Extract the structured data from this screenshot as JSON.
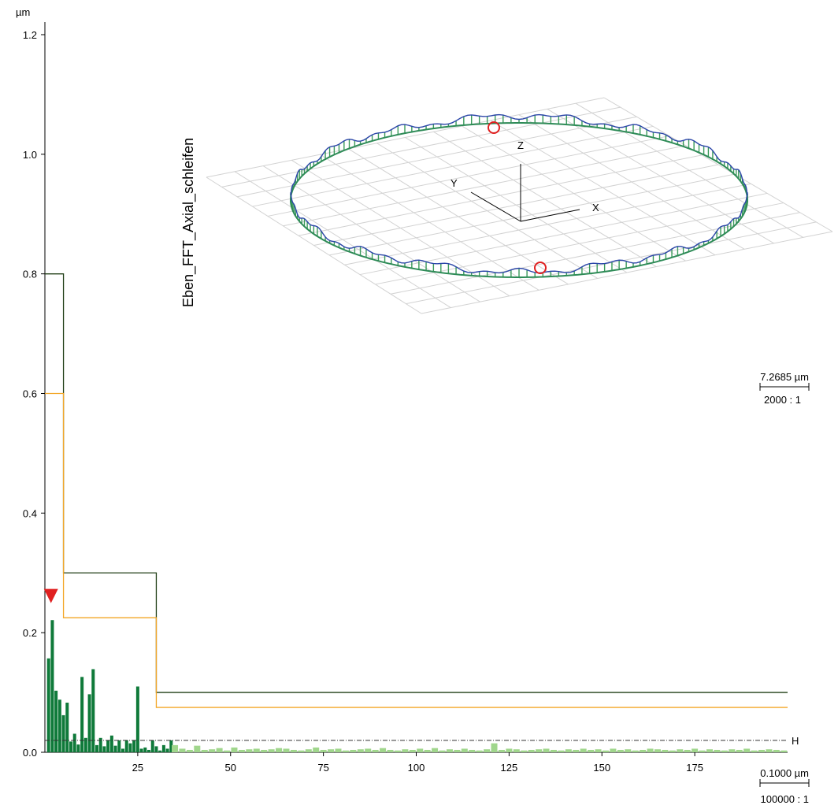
{
  "chart_data": {
    "type": "bar",
    "title": "Eben_FFT_Axial_schleifen",
    "ylabel": "µm",
    "ylim": [
      0,
      1.25
    ],
    "xlim": [
      0,
      200
    ],
    "yticks": [
      0.0,
      0.2,
      0.4,
      0.6,
      0.8,
      1.0,
      1.2
    ],
    "ytick_labels": [
      "0.0",
      "0.2",
      "0.4",
      "0.6",
      "0.8",
      "1.0",
      "1.2"
    ],
    "xticks": [
      25,
      50,
      75,
      100,
      125,
      150,
      175
    ],
    "xtick_labels": [
      "25",
      "50",
      "75",
      "100",
      "125",
      "150",
      "175"
    ],
    "grid": false,
    "limit_lines": [
      {
        "name": "limit-upper",
        "color": "#1e3d14",
        "steps": [
          [
            0,
            5,
            0.8
          ],
          [
            5,
            30,
            0.3
          ],
          [
            30,
            200,
            0.1
          ]
        ]
      },
      {
        "name": "limit-lower",
        "color": "#f3a524",
        "steps": [
          [
            0,
            5,
            0.6
          ],
          [
            5,
            30,
            0.225
          ],
          [
            30,
            200,
            0.075
          ]
        ]
      }
    ],
    "threshold": {
      "value": 0.02,
      "label": "H"
    },
    "marker": {
      "x": 1,
      "y": 0.26
    },
    "series": [
      {
        "color": "#0f7a3a",
        "x": [
          1,
          2,
          3,
          4,
          5,
          6,
          7,
          8,
          9,
          10,
          11,
          12,
          13,
          14,
          15,
          16,
          17,
          18,
          19,
          20,
          21,
          22,
          23,
          24,
          25,
          26,
          27,
          28,
          29,
          30,
          31,
          32,
          33,
          34
        ],
        "values": [
          0.157,
          0.221,
          0.103,
          0.088,
          0.062,
          0.083,
          0.018,
          0.031,
          0.013,
          0.126,
          0.024,
          0.097,
          0.139,
          0.012,
          0.024,
          0.01,
          0.02,
          0.028,
          0.011,
          0.02,
          0.006,
          0.02,
          0.015,
          0.02,
          0.11,
          0.006,
          0.008,
          0.004,
          0.02,
          0.01,
          0.003,
          0.012,
          0.006,
          0.02
        ]
      },
      {
        "color": "#a0d68c",
        "x": [
          35,
          37,
          39,
          41,
          43,
          45,
          47,
          49,
          51,
          53,
          55,
          57,
          59,
          61,
          63,
          65,
          67,
          69,
          71,
          73,
          75,
          77,
          79,
          81,
          83,
          85,
          87,
          89,
          91,
          93,
          95,
          97,
          99,
          101,
          103,
          105,
          107,
          109,
          111,
          113,
          115,
          117,
          119,
          121,
          123,
          125,
          127,
          129,
          131,
          133,
          135,
          137,
          139,
          141,
          143,
          145,
          147,
          149,
          151,
          153,
          155,
          157,
          159,
          161,
          163,
          165,
          167,
          169,
          171,
          173,
          175,
          177,
          179,
          181,
          183,
          185,
          187,
          189,
          191,
          193,
          195,
          197,
          199
        ],
        "values": [
          0.012,
          0.006,
          0.004,
          0.011,
          0.004,
          0.005,
          0.007,
          0.003,
          0.008,
          0.004,
          0.005,
          0.006,
          0.004,
          0.005,
          0.007,
          0.006,
          0.004,
          0.003,
          0.005,
          0.008,
          0.004,
          0.005,
          0.006,
          0.003,
          0.004,
          0.005,
          0.006,
          0.004,
          0.007,
          0.004,
          0.003,
          0.005,
          0.004,
          0.006,
          0.004,
          0.007,
          0.003,
          0.005,
          0.004,
          0.006,
          0.004,
          0.003,
          0.005,
          0.015,
          0.004,
          0.006,
          0.005,
          0.003,
          0.004,
          0.005,
          0.006,
          0.004,
          0.003,
          0.005,
          0.004,
          0.006,
          0.004,
          0.005,
          0.003,
          0.006,
          0.004,
          0.005,
          0.003,
          0.004,
          0.006,
          0.005,
          0.004,
          0.003,
          0.005,
          0.004,
          0.006,
          0.003,
          0.005,
          0.004,
          0.003,
          0.005,
          0.004,
          0.006,
          0.003,
          0.004,
          0.005,
          0.004,
          0.003
        ]
      }
    ],
    "scale_bars": [
      {
        "value_label": "7.2685 µm",
        "ratio_label": "2000 : 1"
      },
      {
        "value_label": "0.1000 µm",
        "ratio_label": "100000 : 1"
      }
    ],
    "inset_axes": {
      "x": "X",
      "y": "Y",
      "z": "Z"
    }
  }
}
